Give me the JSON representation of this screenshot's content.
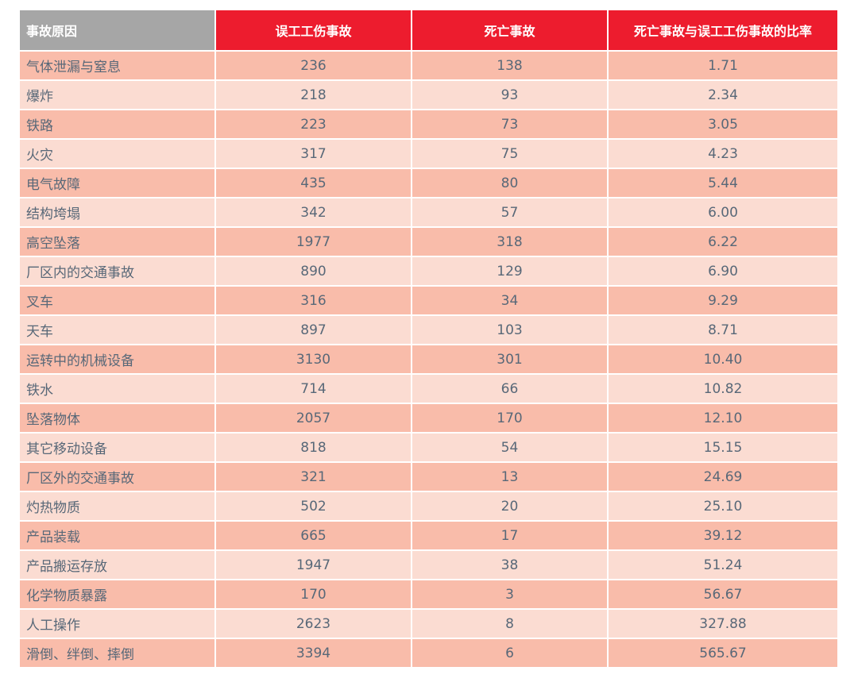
{
  "table": {
    "header": [
      "事故原因",
      "误工工伤事故",
      "死亡事故",
      "死亡事故与误工工伤事故的比率"
    ],
    "rows": [
      [
        "气体泄漏与窒息",
        "236",
        "138",
        "1.71"
      ],
      [
        "爆炸",
        "218",
        "93",
        "2.34"
      ],
      [
        "铁路",
        "223",
        "73",
        "3.05"
      ],
      [
        "火灾",
        "317",
        "75",
        "4.23"
      ],
      [
        "电气故障",
        "435",
        "80",
        "5.44"
      ],
      [
        "结构垮塌",
        "342",
        "57",
        "6.00"
      ],
      [
        "高空坠落",
        "1977",
        "318",
        "6.22"
      ],
      [
        "厂区内的交通事故",
        "890",
        "129",
        "6.90"
      ],
      [
        "叉车",
        "316",
        "34",
        "9.29"
      ],
      [
        "天车",
        "897",
        "103",
        "8.71"
      ],
      [
        "运转中的机械设备",
        "3130",
        "301",
        "10.40"
      ],
      [
        "铁水",
        "714",
        "66",
        "10.82"
      ],
      [
        "坠落物体",
        "2057",
        "170",
        "12.10"
      ],
      [
        "其它移动设备",
        "818",
        "54",
        "15.15"
      ],
      [
        "厂区外的交通事故",
        "321",
        "13",
        "24.69"
      ],
      [
        "灼热物质",
        "502",
        "20",
        "25.10"
      ],
      [
        "产品装载",
        "665",
        "17",
        "39.12"
      ],
      [
        "产品搬运存放",
        "1947",
        "38",
        "51.24"
      ],
      [
        "化学物质暴露",
        "170",
        "3",
        "56.67"
      ],
      [
        "人工操作",
        "2623",
        "8",
        "327.88"
      ],
      [
        "滑倒、绊倒、摔倒",
        "3394",
        "6",
        "565.67"
      ]
    ]
  }
}
